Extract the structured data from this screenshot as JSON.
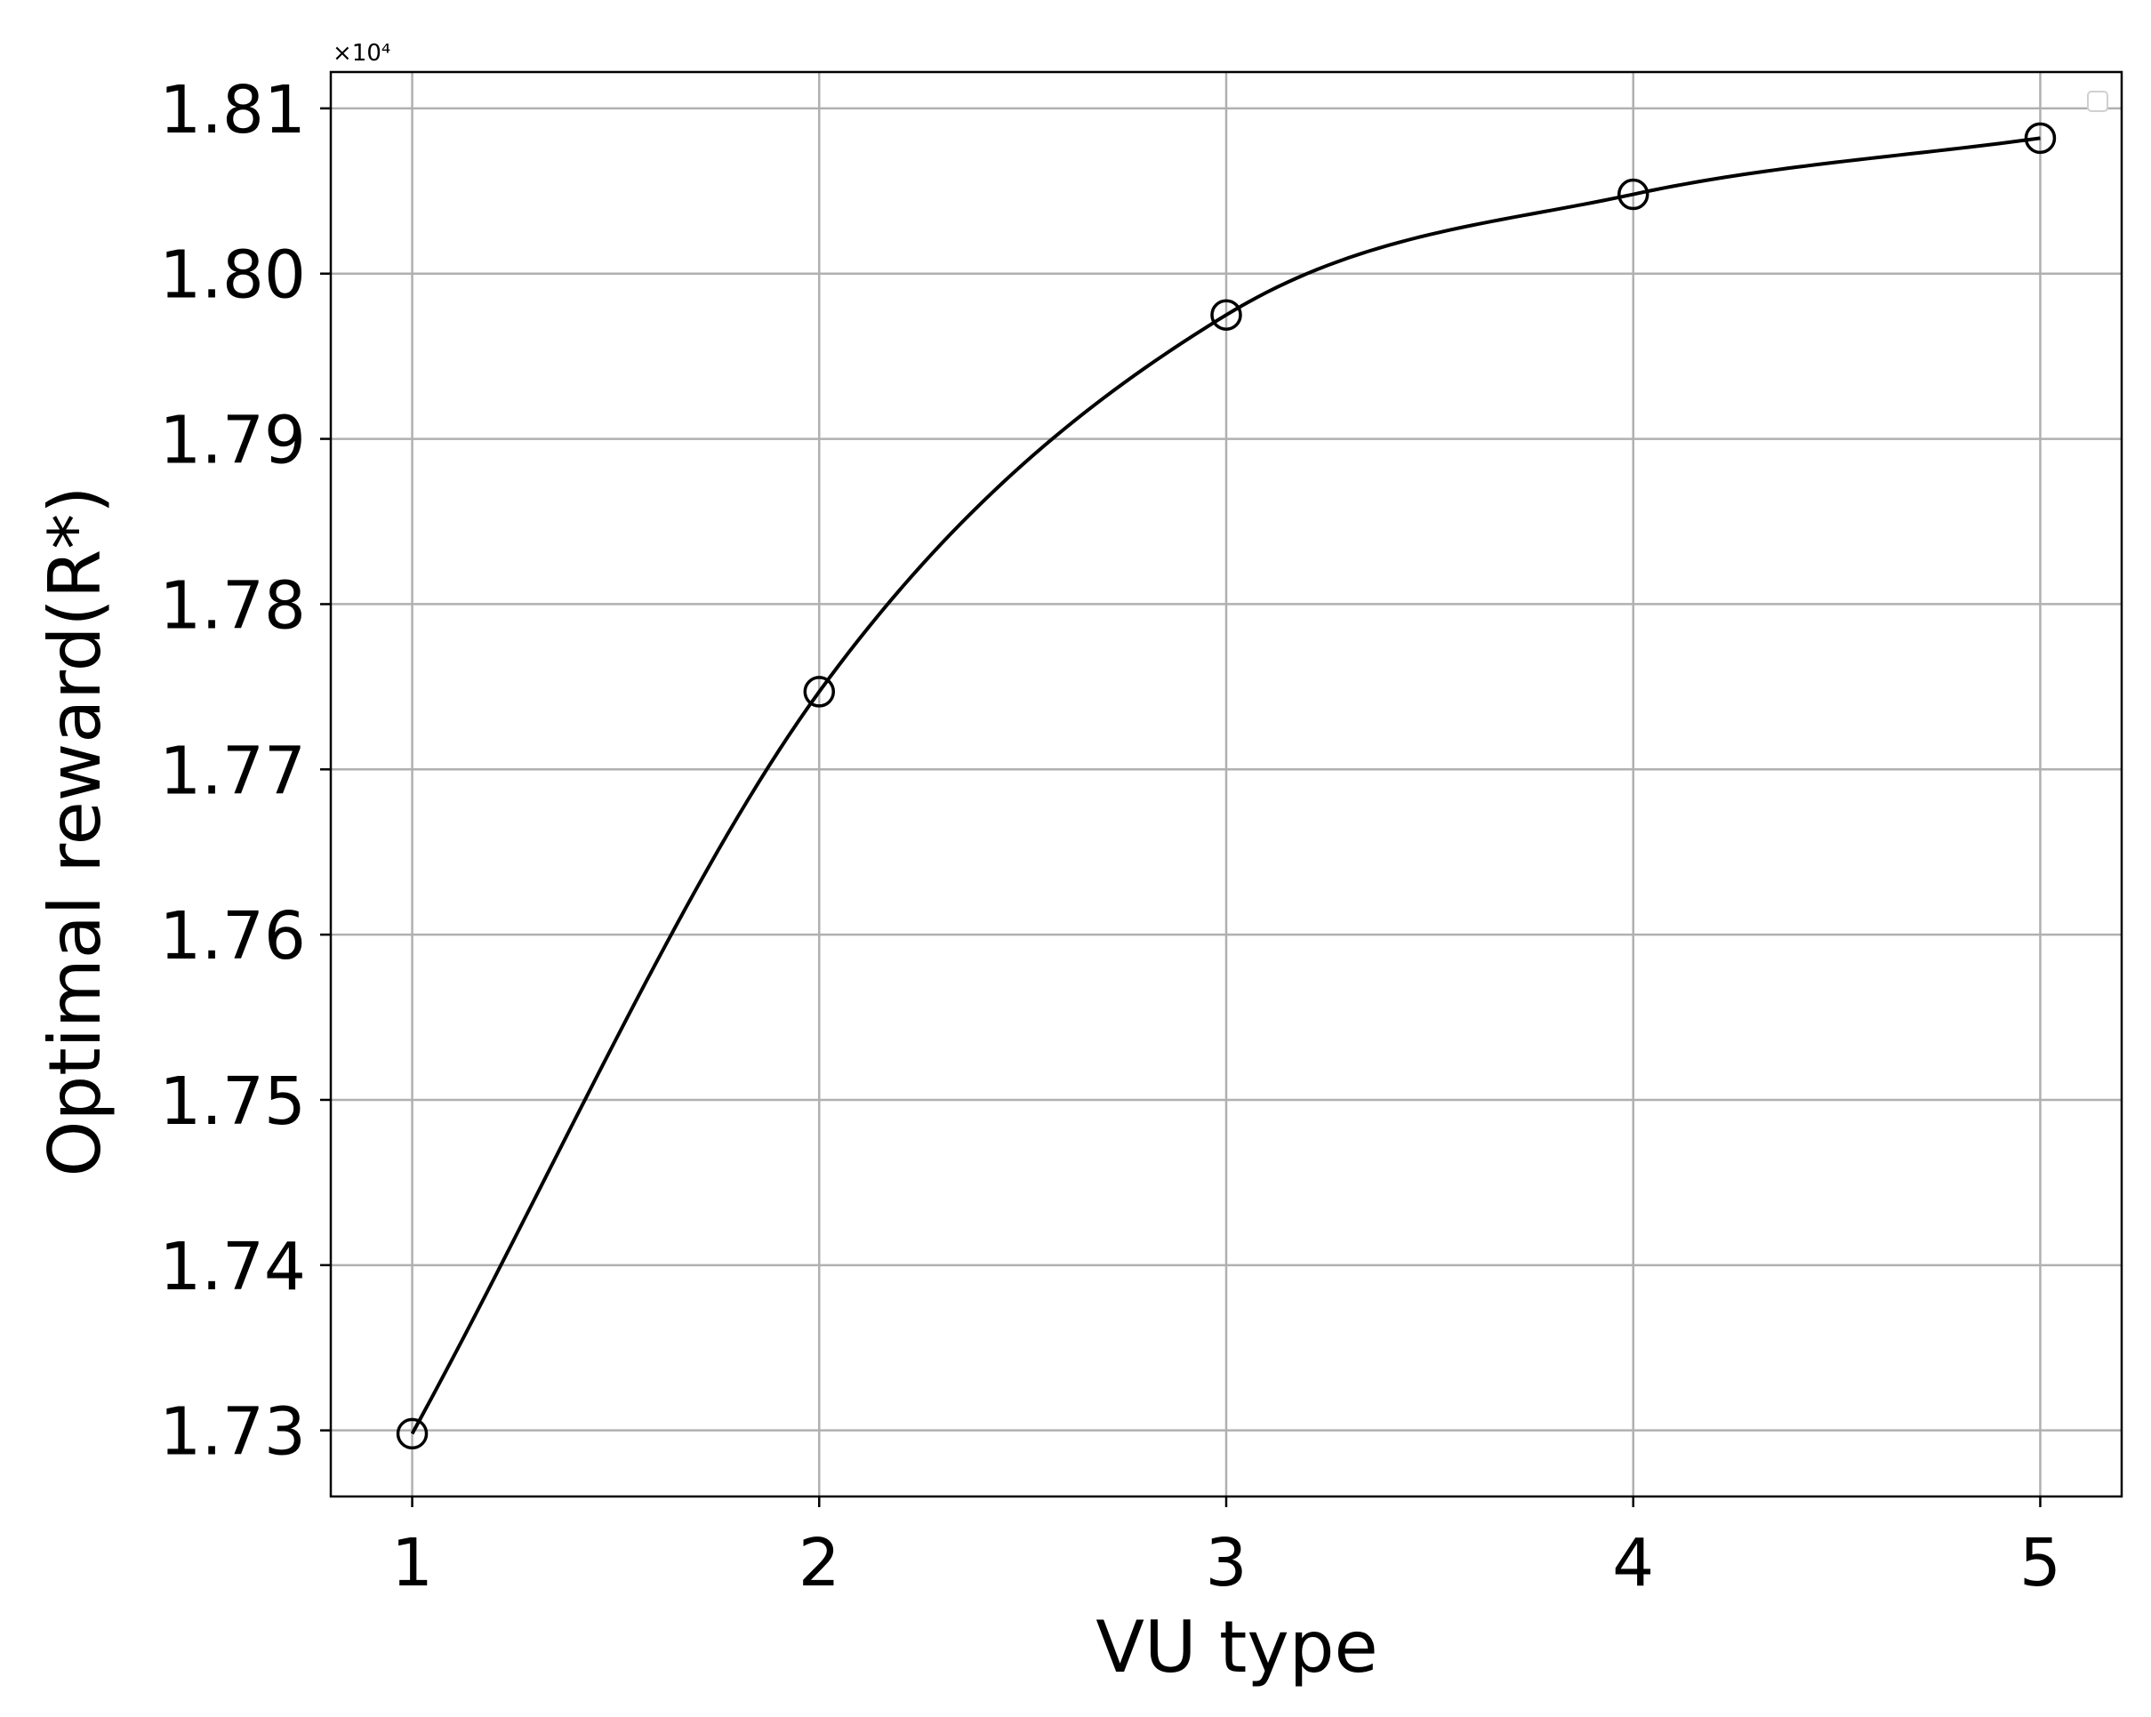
{
  "chart_data": {
    "type": "line",
    "title": "",
    "xlabel": "VU type",
    "ylabel": "Optimal reward(R*)",
    "y_offset_label": "×10⁴",
    "x_ticks": [
      "1",
      "2",
      "3",
      "4",
      "5"
    ],
    "y_ticks": [
      "1.73",
      "1.74",
      "1.75",
      "1.76",
      "1.77",
      "1.78",
      "1.79",
      "1.80",
      "1.81"
    ],
    "xlim": [
      0.8,
      5.2
    ],
    "ylim": [
      1.726,
      1.8122
    ],
    "grid": true,
    "legend": "top-right (empty)",
    "series": [
      {
        "x": [
          1,
          2,
          3,
          4,
          5
        ],
        "y": [
          1.7298,
          1.7747,
          1.7975,
          1.8048,
          1.8082
        ],
        "marker": "open-circle",
        "color": "#000000"
      }
    ]
  }
}
